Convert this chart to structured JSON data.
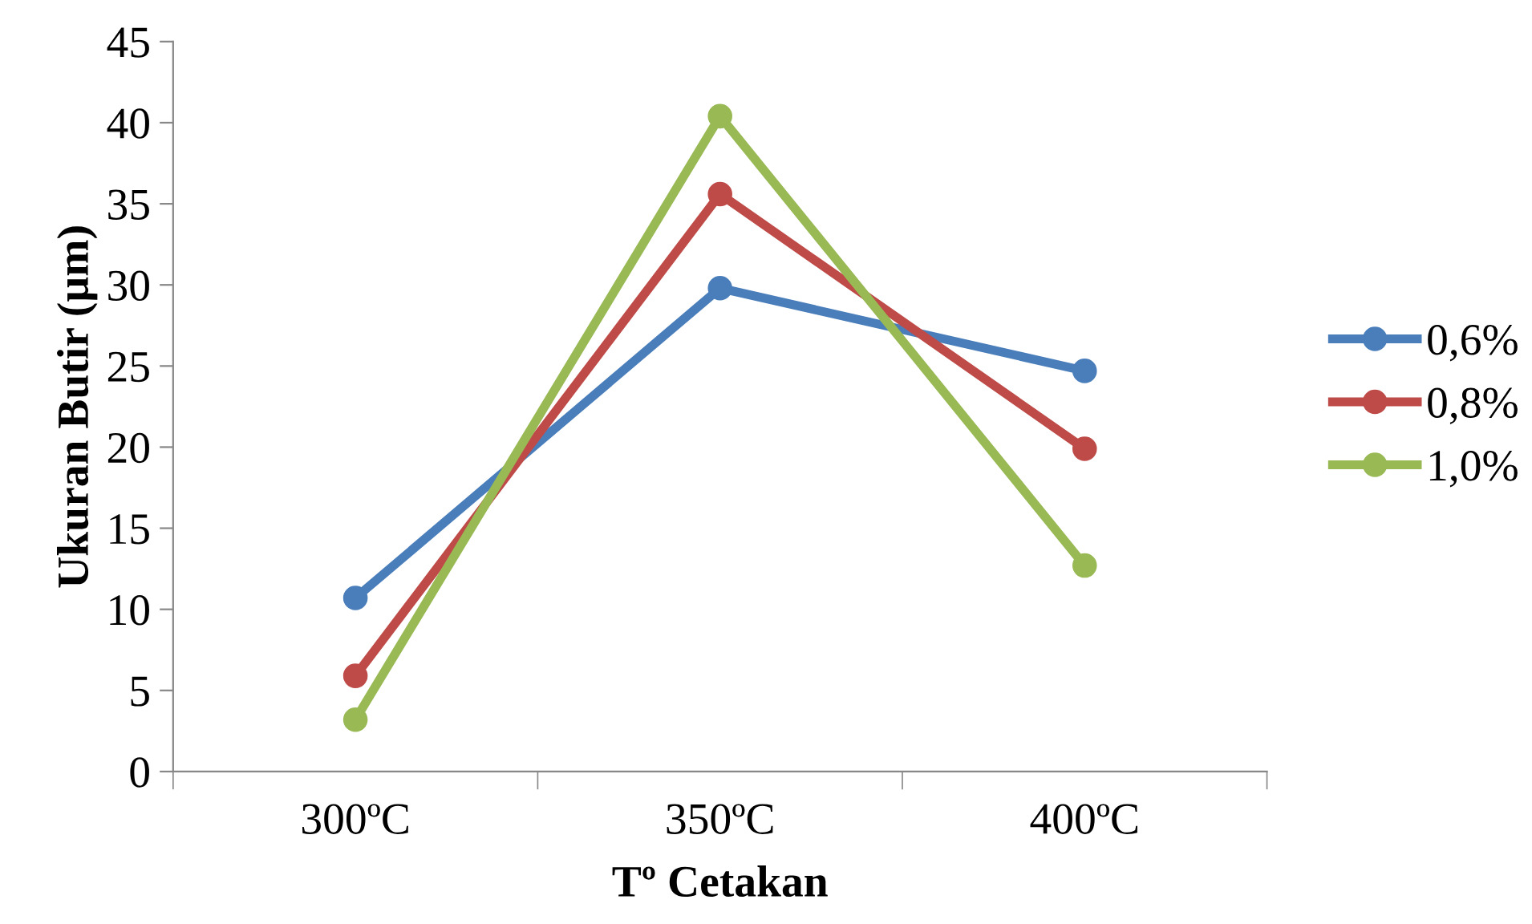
{
  "chart_data": {
    "type": "line",
    "xlabel": "Tº Cetakan",
    "ylabel": "Ukuran Butir (µm)",
    "categories": [
      "300ºC",
      "350ºC",
      "400ºC"
    ],
    "series": [
      {
        "name": "0,6%",
        "color": "#4a7ebb",
        "values": [
          10.7,
          29.8,
          24.7
        ]
      },
      {
        "name": "0,8%",
        "color": "#be4b48",
        "values": [
          5.9,
          35.6,
          19.9
        ]
      },
      {
        "name": "1,0%",
        "color": "#98b954",
        "values": [
          3.2,
          40.4,
          12.7
        ]
      }
    ],
    "ylim": [
      0,
      45
    ],
    "yticks": [
      0,
      5,
      10,
      15,
      20,
      25,
      30,
      35,
      40,
      45
    ],
    "grid": false,
    "legend": "right",
    "marker": "circle",
    "line_style": "solid"
  }
}
